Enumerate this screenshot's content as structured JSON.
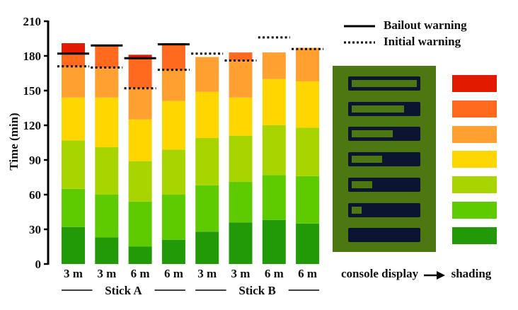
{
  "chart_data": {
    "type": "bar",
    "stacked": true,
    "title": "",
    "xlabel": "",
    "ylabel": "Time (min)",
    "ylim": [
      0,
      210
    ],
    "yticks": [
      0,
      30,
      60,
      90,
      120,
      150,
      180,
      210
    ],
    "grid": false,
    "categories": [
      "3 m",
      "3 m",
      "6 m",
      "6 m",
      "3 m",
      "3 m",
      "6 m",
      "6 m"
    ],
    "groups": [
      {
        "label": "Stick A",
        "category_indices": [
          0,
          1,
          2,
          3
        ]
      },
      {
        "label": "Stick B",
        "category_indices": [
          4,
          5,
          6,
          7
        ]
      }
    ],
    "segment_colors": [
      "#229a08",
      "#5ecb00",
      "#a8d500",
      "#ffd600",
      "#ffa030",
      "#ff6a1e",
      "#e21a00"
    ],
    "segment_names": [
      "shading 7 (dark green)",
      "shading 6 (green)",
      "shading 5 (yellow-green)",
      "shading 4 (yellow)",
      "shading 3 (light orange)",
      "shading 2 (dark orange)",
      "shading 1 (red)"
    ],
    "cumulative_tops": [
      [
        32,
        65,
        107,
        144,
        171,
        182,
        191
      ],
      [
        23,
        60,
        101,
        144,
        170,
        189,
        null
      ],
      [
        15,
        54,
        89,
        125,
        152,
        178,
        181
      ],
      [
        21,
        60,
        99,
        141,
        168,
        190,
        191
      ],
      [
        28,
        68,
        109,
        149,
        179,
        null,
        null
      ],
      [
        36,
        71,
        111,
        144,
        176,
        183,
        null
      ],
      [
        38,
        77,
        120,
        160,
        183,
        null,
        null
      ],
      [
        35,
        76,
        118,
        158,
        187,
        null,
        null
      ]
    ],
    "series": [
      {
        "name": "Bailout warning",
        "style": "solid",
        "values": [
          182,
          189,
          178,
          190,
          null,
          null,
          null,
          null
        ]
      },
      {
        "name": "Initial warning",
        "style": "dotted",
        "values": [
          171,
          170,
          152,
          168,
          182,
          176,
          196,
          186
        ]
      }
    ],
    "legend": {
      "position": "top-right",
      "entries": [
        {
          "label": "Bailout warning",
          "style": "solid"
        },
        {
          "label": "Initial warning",
          "style": "dotted"
        }
      ]
    }
  },
  "console_legend": {
    "caption_left": "console display",
    "caption_right": "shading",
    "arrow_icon": "right-arrow",
    "panel_color": "#4d7710",
    "display_fill_fractions": [
      1.0,
      0.8,
      0.63,
      0.47,
      0.31,
      0.15,
      0.0
    ],
    "shading_colors": [
      "#e21a00",
      "#ff6a1e",
      "#ffa030",
      "#ffd600",
      "#a8d500",
      "#5ecb00",
      "#229a08"
    ]
  }
}
